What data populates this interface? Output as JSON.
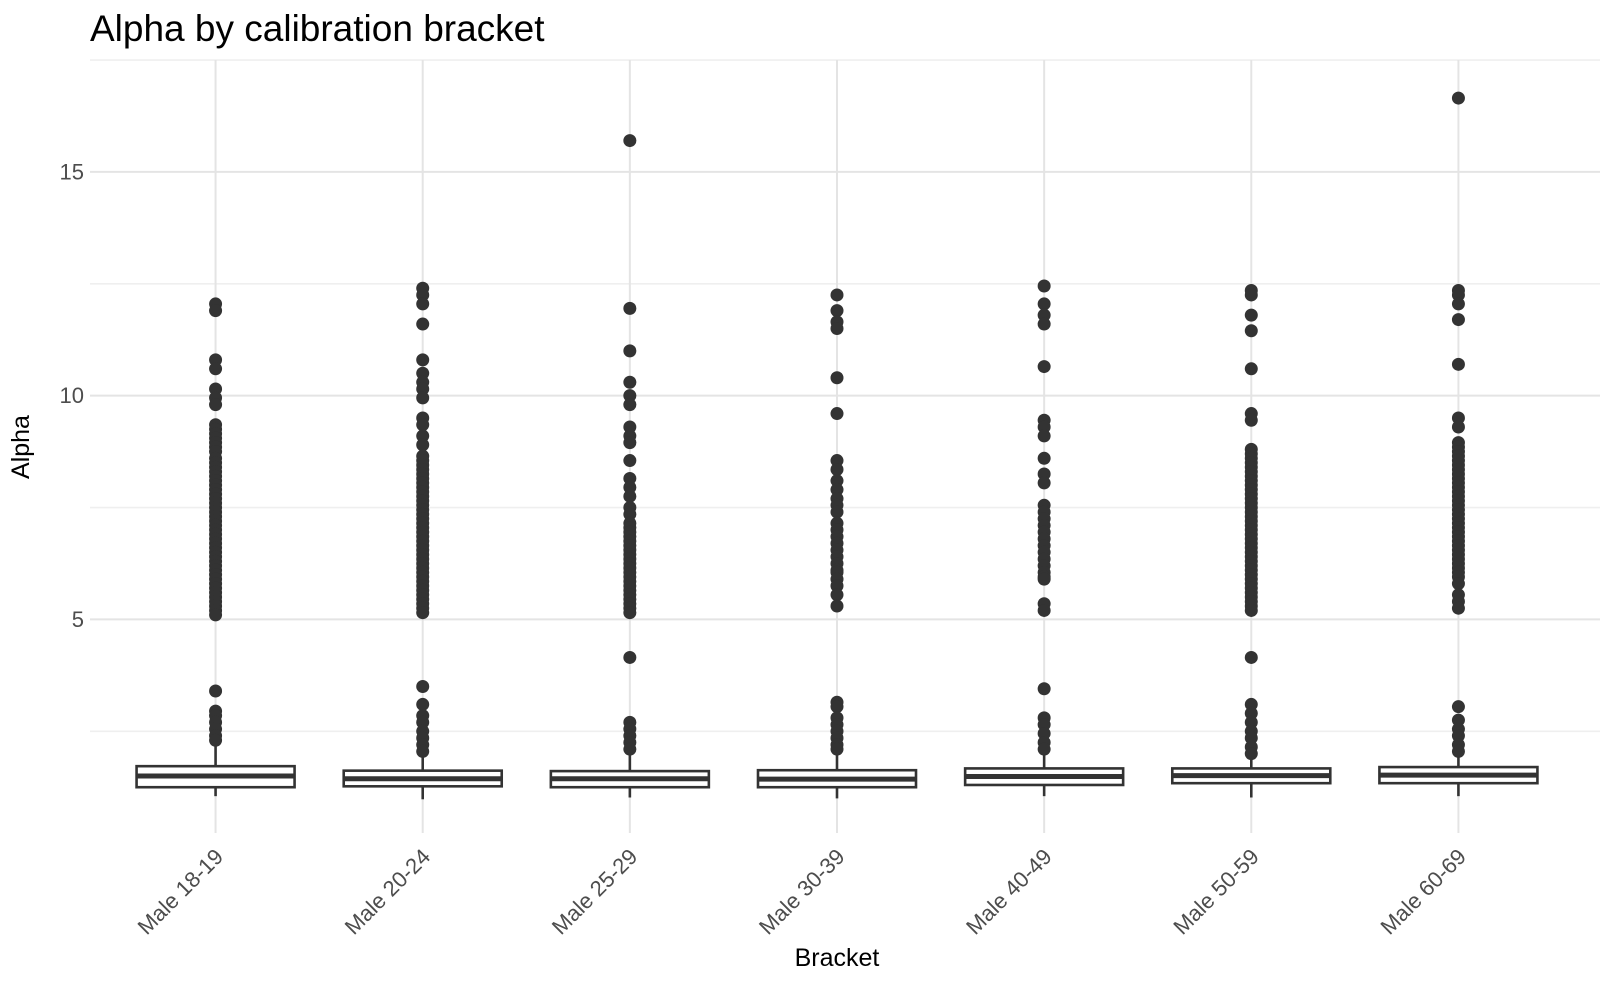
{
  "chart_data": {
    "type": "boxplot",
    "title": "Alpha by calibration bracket",
    "xlabel": "Bracket",
    "ylabel": "Alpha",
    "legend": "none",
    "grid": "on",
    "categories": [
      "Male 18-19",
      "Male 20-24",
      "Male 25-29",
      "Male 30-39",
      "Male 40-49",
      "Male 50-59",
      "Male 60-69"
    ],
    "y_axis": {
      "ticks": [
        5,
        10,
        15
      ],
      "tick_labels": [
        "5",
        "10",
        "15"
      ],
      "minor_ticks": [
        2.5,
        7.5,
        12.5,
        17.5
      ],
      "range": [
        0.25,
        17.45
      ]
    },
    "boxes": [
      {
        "category": "Male 18-19",
        "whisker_low": 1.05,
        "q1": 1.25,
        "median": 1.5,
        "q3": 1.72,
        "whisker_high": 2.25
      },
      {
        "category": "Male 20-24",
        "whisker_low": 0.98,
        "q1": 1.27,
        "median": 1.44,
        "q3": 1.62,
        "whisker_high": 2.03
      },
      {
        "category": "Male 25-29",
        "whisker_low": 1.02,
        "q1": 1.25,
        "median": 1.44,
        "q3": 1.61,
        "whisker_high": 1.98
      },
      {
        "category": "Male 30-39",
        "whisker_low": 1.0,
        "q1": 1.25,
        "median": 1.43,
        "q3": 1.63,
        "whisker_high": 2.05
      },
      {
        "category": "Male 40-49",
        "whisker_low": 1.05,
        "q1": 1.3,
        "median": 1.49,
        "q3": 1.67,
        "whisker_high": 2.02
      },
      {
        "category": "Male 50-59",
        "whisker_low": 1.02,
        "q1": 1.34,
        "median": 1.51,
        "q3": 1.67,
        "whisker_high": 1.95
      },
      {
        "category": "Male 60-69",
        "whisker_low": 1.05,
        "q1": 1.34,
        "median": 1.52,
        "q3": 1.7,
        "whisker_high": 2.0
      }
    ],
    "outliers": [
      [
        12.05,
        11.9,
        10.8,
        10.6,
        10.15,
        9.95,
        9.8,
        9.35,
        9.25,
        9.15,
        9.05,
        8.95,
        8.85,
        8.75,
        8.6,
        8.5,
        8.4,
        8.3,
        8.2,
        8.1,
        8.0,
        7.9,
        7.8,
        7.7,
        7.6,
        7.5,
        7.4,
        7.3,
        7.2,
        7.1,
        7.0,
        6.9,
        6.8,
        6.7,
        6.6,
        6.5,
        6.4,
        6.3,
        6.2,
        6.1,
        6.0,
        5.9,
        5.8,
        5.7,
        5.6,
        5.5,
        5.4,
        5.3,
        5.2,
        5.1,
        3.4,
        2.95,
        2.85,
        2.7,
        2.55,
        2.4,
        2.3
      ],
      [
        12.4,
        12.25,
        12.05,
        11.6,
        10.8,
        10.5,
        10.3,
        10.15,
        9.95,
        9.5,
        9.35,
        9.1,
        8.9,
        8.65,
        8.55,
        8.45,
        8.35,
        8.25,
        8.15,
        8.05,
        7.95,
        7.85,
        7.75,
        7.65,
        7.55,
        7.45,
        7.35,
        7.25,
        7.15,
        7.05,
        6.95,
        6.85,
        6.75,
        6.65,
        6.55,
        6.45,
        6.35,
        6.25,
        6.15,
        6.05,
        5.95,
        5.85,
        5.75,
        5.65,
        5.55,
        5.45,
        5.35,
        5.25,
        5.15,
        3.5,
        3.1,
        2.85,
        2.7,
        2.5,
        2.35,
        2.2,
        2.05
      ],
      [
        15.7,
        11.95,
        11.0,
        10.3,
        10.0,
        9.8,
        9.3,
        9.1,
        8.95,
        8.55,
        8.15,
        7.95,
        7.75,
        7.5,
        7.35,
        7.15,
        7.05,
        6.95,
        6.85,
        6.75,
        6.65,
        6.55,
        6.45,
        6.35,
        6.25,
        6.15,
        6.05,
        5.95,
        5.85,
        5.75,
        5.65,
        5.55,
        5.45,
        5.35,
        5.25,
        5.15,
        4.15,
        2.7,
        2.55,
        2.4,
        2.25,
        2.1
      ],
      [
        12.25,
        11.9,
        11.65,
        11.5,
        10.4,
        9.6,
        8.55,
        8.35,
        8.1,
        7.9,
        7.7,
        7.55,
        7.4,
        7.15,
        7.0,
        6.85,
        6.7,
        6.55,
        6.4,
        6.25,
        6.1,
        6.05,
        5.9,
        5.75,
        5.55,
        5.3,
        3.15,
        3.05,
        2.8,
        2.65,
        2.5,
        2.35,
        2.2,
        2.1
      ],
      [
        12.45,
        12.05,
        11.8,
        11.6,
        10.65,
        9.45,
        9.3,
        9.1,
        8.6,
        8.25,
        8.05,
        7.55,
        7.4,
        7.25,
        7.1,
        6.95,
        6.8,
        6.65,
        6.5,
        6.35,
        6.2,
        6.05,
        5.95,
        5.9,
        5.35,
        5.2,
        3.45,
        2.8,
        2.65,
        2.45,
        2.25,
        2.1
      ],
      [
        12.35,
        12.25,
        11.8,
        11.45,
        10.6,
        9.6,
        9.45,
        8.8,
        8.7,
        8.6,
        8.5,
        8.4,
        8.3,
        8.2,
        8.1,
        8.0,
        7.9,
        7.8,
        7.7,
        7.6,
        7.5,
        7.4,
        7.3,
        7.2,
        7.1,
        7.0,
        6.9,
        6.8,
        6.7,
        6.6,
        6.5,
        6.4,
        6.3,
        6.2,
        6.1,
        6.0,
        5.9,
        5.8,
        5.7,
        5.6,
        5.5,
        5.4,
        5.3,
        5.2,
        4.15,
        3.1,
        2.9,
        2.7,
        2.5,
        2.35,
        2.15,
        2.0
      ],
      [
        16.65,
        12.35,
        12.25,
        12.05,
        11.7,
        10.7,
        9.5,
        9.3,
        8.95,
        8.85,
        8.75,
        8.65,
        8.55,
        8.45,
        8.35,
        8.25,
        8.15,
        8.05,
        7.95,
        7.85,
        7.75,
        7.65,
        7.55,
        7.45,
        7.35,
        7.25,
        7.15,
        7.05,
        6.95,
        6.85,
        6.75,
        6.65,
        6.55,
        6.45,
        6.35,
        6.25,
        6.15,
        6.05,
        5.95,
        5.8,
        5.55,
        5.4,
        5.25,
        3.05,
        2.75,
        2.55,
        2.4,
        2.2,
        2.05
      ]
    ],
    "colors": {
      "background": "#ffffff",
      "point": "#333333",
      "box_stroke": "#333333",
      "box_fill": "#ffffff",
      "grid_major": "#e4e4e4",
      "grid_minor": "#efefef",
      "tick_label": "#4d4d4d",
      "title": "#000000"
    }
  }
}
